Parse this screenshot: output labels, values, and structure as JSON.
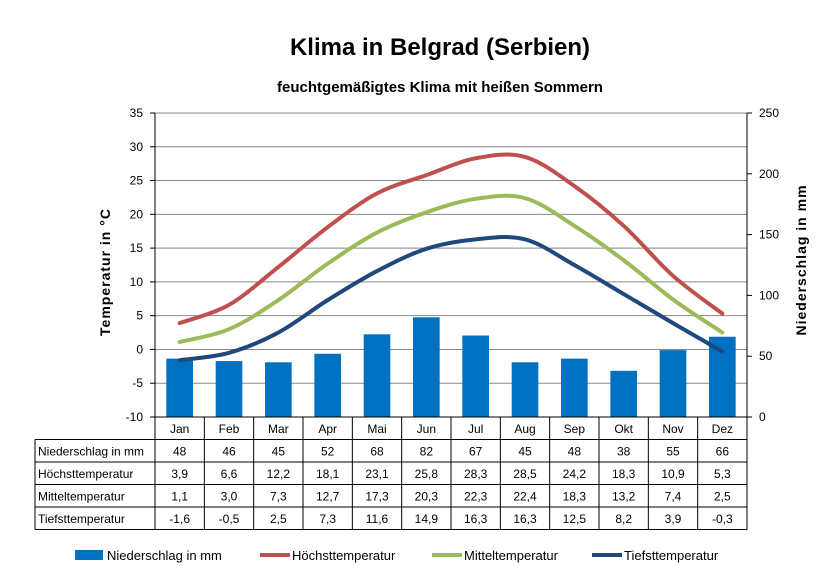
{
  "chart_data": {
    "type": "bar+line",
    "title": "Klima in Belgrad (Serbien)",
    "subtitle": "feuchtgemäßigtes Klima mit heißen Sommern",
    "ylabel_left": "Temperatur in °C",
    "ylabel_right": "Niederschlag in mm",
    "ylim_left": [
      -10,
      35
    ],
    "ylim_right": [
      0,
      250
    ],
    "yticks_left": [
      "-10",
      "-5",
      "0",
      "5",
      "10",
      "15",
      "20",
      "25",
      "30",
      "35"
    ],
    "yticks_right": [
      "0",
      "50",
      "100",
      "150",
      "200",
      "250"
    ],
    "categories": [
      "Jan",
      "Feb",
      "Mar",
      "Apr",
      "Mai",
      "Jun",
      "Jul",
      "Aug",
      "Sep",
      "Okt",
      "Nov",
      "Dez"
    ],
    "grid": true,
    "legend_position": "bottom",
    "bar_series": {
      "name": "Niederschlag in mm",
      "color": "#0070C0",
      "values": [
        48,
        46,
        45,
        52,
        68,
        82,
        67,
        45,
        48,
        38,
        55,
        66
      ],
      "labels": [
        "48",
        "46",
        "45",
        "52",
        "68",
        "82",
        "67",
        "45",
        "48",
        "38",
        "55",
        "66"
      ]
    },
    "line_series": [
      {
        "name": "Höchsttemperatur",
        "color": "#C0504D",
        "values": [
          3.9,
          6.6,
          12.2,
          18.1,
          23.1,
          25.8,
          28.3,
          28.5,
          24.2,
          18.3,
          10.9,
          5.3
        ],
        "labels": [
          "3,9",
          "6,6",
          "12,2",
          "18,1",
          "23,1",
          "25,8",
          "28,3",
          "28,5",
          "24,2",
          "18,3",
          "10,9",
          "5,3"
        ]
      },
      {
        "name": "Mitteltemperatur",
        "color": "#9BBB59",
        "values": [
          1.1,
          3.0,
          7.3,
          12.7,
          17.3,
          20.3,
          22.3,
          22.4,
          18.3,
          13.2,
          7.4,
          2.5
        ],
        "labels": [
          "1,1",
          "3,0",
          "7,3",
          "12,7",
          "17,3",
          "20,3",
          "22,3",
          "22,4",
          "18,3",
          "13,2",
          "7,4",
          "2,5"
        ]
      },
      {
        "name": "Tiefsttemperatur",
        "color": "#1F497D",
        "values": [
          -1.6,
          -0.5,
          2.5,
          7.3,
          11.6,
          14.9,
          16.3,
          16.3,
          12.5,
          8.2,
          3.9,
          -0.3
        ],
        "labels": [
          "-1,6",
          "-0,5",
          "2,5",
          "7,3",
          "11,6",
          "14,9",
          "16,3",
          "16,3",
          "12,5",
          "8,2",
          "3,9",
          "-0,3"
        ]
      }
    ]
  }
}
